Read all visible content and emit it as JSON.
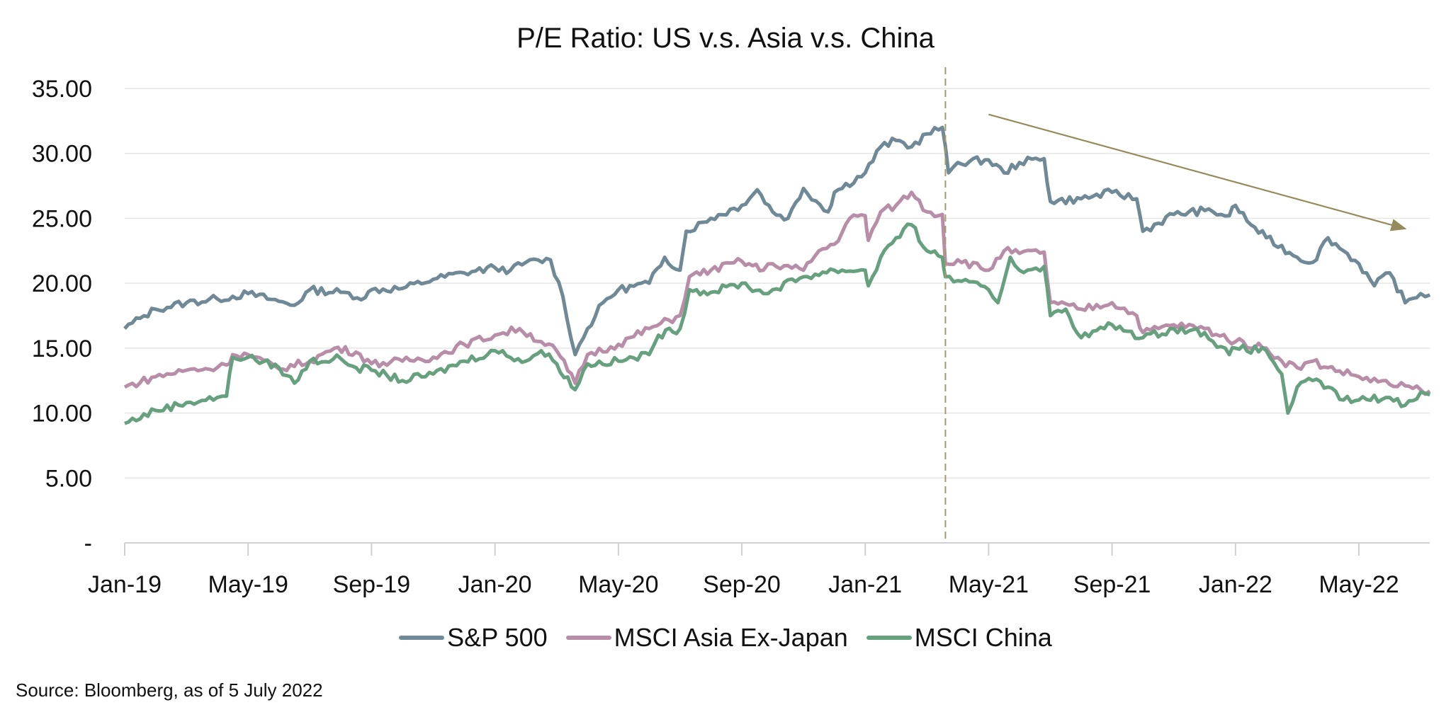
{
  "chart_data": {
    "type": "line",
    "title": "P/E Ratio: US v.s. Asia v.s. China",
    "xlabel": "",
    "ylabel": "",
    "x_unit": "months since Jan-19",
    "xlim": [
      0,
      42.3
    ],
    "ylim": [
      0,
      35
    ],
    "y_ticks": [
      0,
      5,
      10,
      15,
      20,
      25,
      30,
      35
    ],
    "y_tick_labels": [
      "-",
      "5.00",
      "10.00",
      "15.00",
      "20.00",
      "25.00",
      "30.00",
      "35.00"
    ],
    "x_ticks": [
      0,
      4,
      8,
      12,
      16,
      20,
      24,
      28,
      32,
      36,
      40
    ],
    "x_tick_labels": [
      "Jan-19",
      "May-19",
      "Sep-19",
      "Jan-20",
      "May-20",
      "Sep-20",
      "Jan-21",
      "May-21",
      "Sep-21",
      "Jan-22",
      "May-22"
    ],
    "grid": true,
    "legend_position": "bottom",
    "annotations": {
      "vertical_dashed_line_x": 26.6,
      "trend_arrow": {
        "from": [
          28,
          33
        ],
        "to": [
          41.5,
          24.2
        ]
      }
    },
    "series": [
      {
        "name": "S&P 500",
        "color": "#6f8996",
        "points": [
          [
            0,
            16.5
          ],
          [
            0.5,
            17.3
          ],
          [
            1,
            18.0
          ],
          [
            2,
            18.5
          ],
          [
            3,
            18.8
          ],
          [
            4,
            19.2
          ],
          [
            5,
            18.6
          ],
          [
            5.5,
            18.3
          ],
          [
            6,
            19.5
          ],
          [
            7,
            19.3
          ],
          [
            7.8,
            18.9
          ],
          [
            8,
            19.5
          ],
          [
            9,
            19.6
          ],
          [
            10,
            20.3
          ],
          [
            11,
            20.8
          ],
          [
            12,
            21.2
          ],
          [
            12.5,
            21.0
          ],
          [
            13,
            21.6
          ],
          [
            13.8,
            21.8
          ],
          [
            14.2,
            19.0
          ],
          [
            14.6,
            14.5
          ],
          [
            15,
            16.5
          ],
          [
            15.5,
            18.5
          ],
          [
            16,
            19.5
          ],
          [
            17,
            20.0
          ],
          [
            17.5,
            22.0
          ],
          [
            18,
            21.0
          ],
          [
            18.2,
            24.0
          ],
          [
            19,
            25.0
          ],
          [
            20,
            26.0
          ],
          [
            20.5,
            27.2
          ],
          [
            21,
            25.5
          ],
          [
            21.5,
            25.0
          ],
          [
            22,
            27.3
          ],
          [
            22.8,
            25.5
          ],
          [
            23,
            27.0
          ],
          [
            24,
            28.5
          ],
          [
            24.5,
            30.5
          ],
          [
            25,
            31.0
          ],
          [
            25.5,
            30.5
          ],
          [
            26,
            31.5
          ],
          [
            26.5,
            32.0
          ],
          [
            26.7,
            28.5
          ],
          [
            27,
            29.3
          ],
          [
            28,
            29.5
          ],
          [
            28.5,
            28.5
          ],
          [
            29,
            29.3
          ],
          [
            29.8,
            29.6
          ],
          [
            30,
            26.3
          ],
          [
            31,
            26.5
          ],
          [
            32,
            27.0
          ],
          [
            32.8,
            26.5
          ],
          [
            33,
            24.0
          ],
          [
            34,
            25.3
          ],
          [
            35,
            25.6
          ],
          [
            35.8,
            25.2
          ],
          [
            36,
            26.0
          ],
          [
            36.5,
            24.5
          ],
          [
            37,
            23.5
          ],
          [
            38,
            22.0
          ],
          [
            38.5,
            21.6
          ],
          [
            39,
            23.5
          ],
          [
            39.5,
            22.5
          ],
          [
            40,
            21.5
          ],
          [
            40.5,
            19.8
          ],
          [
            41,
            20.8
          ],
          [
            41.5,
            18.5
          ],
          [
            42,
            19.2
          ],
          [
            42.3,
            19.1
          ]
        ]
      },
      {
        "name": "MSCI Asia Ex-Japan",
        "color": "#b88da8",
        "points": [
          [
            0,
            12.0
          ],
          [
            1,
            12.8
          ],
          [
            2,
            13.3
          ],
          [
            3,
            13.5
          ],
          [
            3.3,
            13.7
          ],
          [
            3.5,
            14.5
          ],
          [
            4,
            14.5
          ],
          [
            5,
            13.4
          ],
          [
            6,
            14.0
          ],
          [
            6.8,
            15.0
          ],
          [
            7.5,
            14.7
          ],
          [
            8,
            13.8
          ],
          [
            9,
            14.0
          ],
          [
            10,
            14.3
          ],
          [
            11,
            15.3
          ],
          [
            12,
            16.0
          ],
          [
            12.8,
            16.5
          ],
          [
            13.5,
            15.5
          ],
          [
            14,
            14.8
          ],
          [
            14.6,
            12.3
          ],
          [
            15,
            14.5
          ],
          [
            16,
            15.3
          ],
          [
            17,
            16.5
          ],
          [
            18,
            17.5
          ],
          [
            18.3,
            20.5
          ],
          [
            19,
            21.0
          ],
          [
            20,
            21.7
          ],
          [
            20.7,
            21.0
          ],
          [
            21,
            21.5
          ],
          [
            22,
            21.0
          ],
          [
            22.5,
            22.5
          ],
          [
            23,
            23.0
          ],
          [
            23.5,
            25.0
          ],
          [
            24,
            25.2
          ],
          [
            24.1,
            23.3
          ],
          [
            24.5,
            25.5
          ],
          [
            25,
            26.0
          ],
          [
            25.5,
            27.0
          ],
          [
            26,
            25.5
          ],
          [
            26.5,
            25.3
          ],
          [
            26.6,
            21.5
          ],
          [
            27,
            21.8
          ],
          [
            28,
            21.0
          ],
          [
            28.5,
            22.5
          ],
          [
            29,
            22.3
          ],
          [
            29.8,
            22.4
          ],
          [
            30,
            18.5
          ],
          [
            31,
            18.0
          ],
          [
            32,
            18.5
          ],
          [
            32.8,
            17.5
          ],
          [
            33,
            16.2
          ],
          [
            34,
            16.8
          ],
          [
            35,
            16.5
          ],
          [
            36,
            15.5
          ],
          [
            37,
            15.0
          ],
          [
            37.5,
            14.0
          ],
          [
            38,
            13.5
          ],
          [
            38.5,
            14.0
          ],
          [
            39,
            13.5
          ],
          [
            40,
            12.8
          ],
          [
            41,
            12.2
          ],
          [
            42,
            11.8
          ],
          [
            42.3,
            11.7
          ]
        ]
      },
      {
        "name": "MSCI China",
        "color": "#67a07f",
        "points": [
          [
            0,
            9.2
          ],
          [
            1,
            10.2
          ],
          [
            2,
            10.8
          ],
          [
            3,
            11.2
          ],
          [
            3.3,
            11.3
          ],
          [
            3.5,
            14.3
          ],
          [
            4,
            14.3
          ],
          [
            5,
            13.5
          ],
          [
            5.5,
            12.3
          ],
          [
            6,
            14.0
          ],
          [
            7,
            14.2
          ],
          [
            7.5,
            13.5
          ],
          [
            8,
            13.3
          ],
          [
            9,
            12.5
          ],
          [
            10,
            13.0
          ],
          [
            11,
            14.0
          ],
          [
            12,
            14.8
          ],
          [
            13,
            14.0
          ],
          [
            13.5,
            14.8
          ],
          [
            14,
            13.8
          ],
          [
            14.6,
            11.8
          ],
          [
            15,
            13.8
          ],
          [
            16,
            14.0
          ],
          [
            17,
            14.5
          ],
          [
            17.3,
            16.0
          ],
          [
            18,
            16.5
          ],
          [
            18.3,
            19.5
          ],
          [
            19,
            19.3
          ],
          [
            20,
            20.0
          ],
          [
            20.7,
            19.2
          ],
          [
            21,
            19.5
          ],
          [
            22,
            20.5
          ],
          [
            23,
            21.0
          ],
          [
            24,
            21.0
          ],
          [
            24.1,
            19.8
          ],
          [
            24.5,
            22.0
          ],
          [
            25,
            23.5
          ],
          [
            25.5,
            24.5
          ],
          [
            26,
            22.5
          ],
          [
            26.5,
            22.0
          ],
          [
            26.6,
            20.5
          ],
          [
            27,
            20.2
          ],
          [
            28,
            19.5
          ],
          [
            28.3,
            18.5
          ],
          [
            28.7,
            22.0
          ],
          [
            29,
            21.0
          ],
          [
            29.8,
            21.3
          ],
          [
            30,
            17.5
          ],
          [
            30.5,
            18.0
          ],
          [
            31,
            15.8
          ],
          [
            32,
            16.8
          ],
          [
            32.5,
            16.3
          ],
          [
            33,
            15.8
          ],
          [
            34,
            16.5
          ],
          [
            35,
            16.2
          ],
          [
            35.8,
            14.5
          ],
          [
            36,
            15.0
          ],
          [
            37,
            14.8
          ],
          [
            37.5,
            13.0
          ],
          [
            37.7,
            10.0
          ],
          [
            38,
            12.0
          ],
          [
            38.5,
            12.5
          ],
          [
            39,
            12.0
          ],
          [
            39.5,
            11.0
          ],
          [
            40,
            11.0
          ],
          [
            41,
            11.2
          ],
          [
            41.5,
            10.6
          ],
          [
            42,
            11.6
          ],
          [
            42.3,
            11.4
          ]
        ]
      }
    ]
  },
  "source": "Source: Bloomberg, as of 5 July 2022"
}
